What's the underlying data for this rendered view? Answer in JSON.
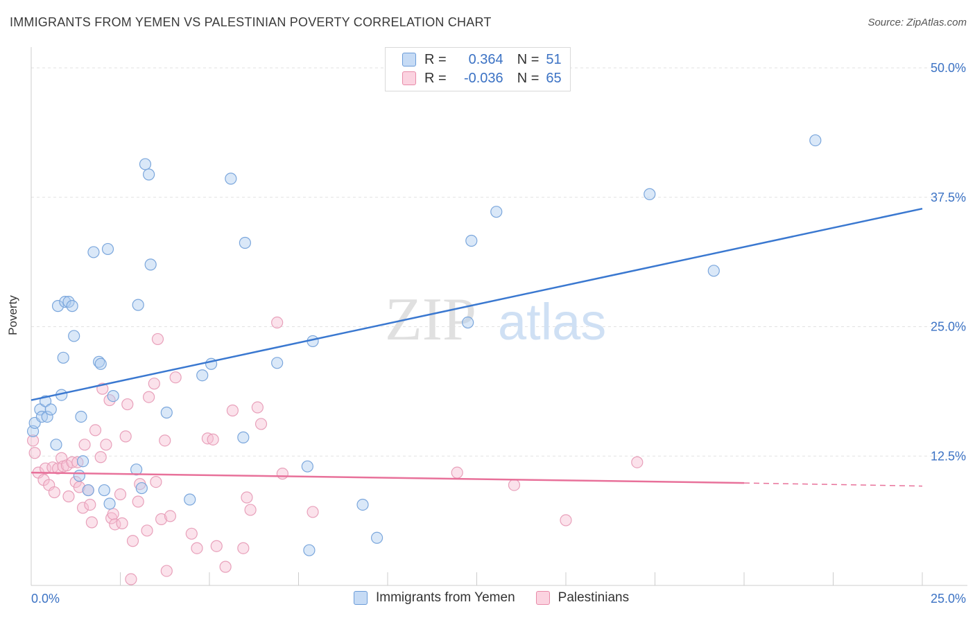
{
  "header": {
    "title": "IMMIGRANTS FROM YEMEN VS PALESTINIAN POVERTY CORRELATION CHART",
    "source": "Source: ZipAtlas.com"
  },
  "watermark": {
    "zip": "ZIP",
    "atlas": "atlas"
  },
  "legend": {
    "rows": [
      {
        "r_label": "R =",
        "r_value": "0.364",
        "n_label": "N =",
        "n_value": "51",
        "color": "#aecbf0",
        "border": "#6a9bd8"
      },
      {
        "r_label": "R =",
        "r_value": "-0.036",
        "n_label": "N =",
        "n_value": "65",
        "color": "#f7c4d4",
        "border": "#e88aa8"
      }
    ]
  },
  "bottom_legend": {
    "series1": "Immigrants from Yemen",
    "series2": "Palestinians"
  },
  "chart_data": {
    "type": "scatter",
    "xlabel": "",
    "ylabel": "Poverty",
    "xlim": [
      0,
      25
    ],
    "ylim": [
      0,
      50
    ],
    "x_tick_labels": [
      "0.0%",
      "25.0%"
    ],
    "y_tick_labels": [
      "12.5%",
      "25.0%",
      "37.5%",
      "50.0%"
    ],
    "y_tick_values": [
      12.5,
      25.0,
      37.5,
      50.0
    ],
    "colors": {
      "blue": "#3a78d0",
      "pink": "#e8719a"
    },
    "series": [
      {
        "name": "Immigrants from Yemen",
        "color": "#3a78d0",
        "trend": {
          "x": [
            0,
            25
          ],
          "y": [
            17.9,
            36.4
          ],
          "dashed_from": null
        },
        "points": [
          [
            0.05,
            14.9
          ],
          [
            0.1,
            15.7
          ],
          [
            0.25,
            17.0
          ],
          [
            0.3,
            16.3
          ],
          [
            0.4,
            17.8
          ],
          [
            0.45,
            16.3
          ],
          [
            0.55,
            17.0
          ],
          [
            0.7,
            13.6
          ],
          [
            0.75,
            27.0
          ],
          [
            0.85,
            18.4
          ],
          [
            0.9,
            22.0
          ],
          [
            0.95,
            27.4
          ],
          [
            1.05,
            27.4
          ],
          [
            1.15,
            27.0
          ],
          [
            1.2,
            24.1
          ],
          [
            1.35,
            10.6
          ],
          [
            1.4,
            16.3
          ],
          [
            1.45,
            12.0
          ],
          [
            1.6,
            9.2
          ],
          [
            1.75,
            32.2
          ],
          [
            1.9,
            21.6
          ],
          [
            1.95,
            21.4
          ],
          [
            2.05,
            9.2
          ],
          [
            2.15,
            32.5
          ],
          [
            2.2,
            7.9
          ],
          [
            2.3,
            18.3
          ],
          [
            2.95,
            11.2
          ],
          [
            3.0,
            27.1
          ],
          [
            3.1,
            9.4
          ],
          [
            3.2,
            40.7
          ],
          [
            3.3,
            39.7
          ],
          [
            3.35,
            31.0
          ],
          [
            3.8,
            16.7
          ],
          [
            4.45,
            8.3
          ],
          [
            4.8,
            20.3
          ],
          [
            5.05,
            21.4
          ],
          [
            5.6,
            39.3
          ],
          [
            5.95,
            14.3
          ],
          [
            6.0,
            33.1
          ],
          [
            6.9,
            21.5
          ],
          [
            7.75,
            11.5
          ],
          [
            7.8,
            3.4
          ],
          [
            7.9,
            23.6
          ],
          [
            9.3,
            7.8
          ],
          [
            9.7,
            4.6
          ],
          [
            12.25,
            25.4
          ],
          [
            12.35,
            33.3
          ],
          [
            13.05,
            36.1
          ],
          [
            17.35,
            37.8
          ],
          [
            19.15,
            30.4
          ],
          [
            22.0,
            43.0
          ]
        ]
      },
      {
        "name": "Palestinians",
        "color": "#e8719a",
        "trend": {
          "x": [
            0,
            20,
            25
          ],
          "y": [
            10.9,
            9.9,
            9.6
          ],
          "dashed_from": 20
        },
        "points": [
          [
            0.05,
            14.0
          ],
          [
            0.1,
            12.8
          ],
          [
            0.2,
            10.9
          ],
          [
            0.35,
            10.2
          ],
          [
            0.4,
            11.3
          ],
          [
            0.5,
            9.7
          ],
          [
            0.6,
            11.4
          ],
          [
            0.65,
            9.0
          ],
          [
            0.75,
            11.3
          ],
          [
            0.85,
            12.3
          ],
          [
            0.9,
            11.5
          ],
          [
            1.0,
            11.6
          ],
          [
            1.05,
            8.6
          ],
          [
            1.15,
            11.9
          ],
          [
            1.25,
            10.0
          ],
          [
            1.3,
            11.9
          ],
          [
            1.35,
            9.5
          ],
          [
            1.45,
            7.5
          ],
          [
            1.5,
            13.6
          ],
          [
            1.6,
            9.2
          ],
          [
            1.65,
            7.8
          ],
          [
            1.7,
            6.1
          ],
          [
            1.8,
            15.0
          ],
          [
            1.95,
            12.4
          ],
          [
            2.0,
            19.0
          ],
          [
            2.1,
            13.6
          ],
          [
            2.2,
            17.9
          ],
          [
            2.25,
            6.5
          ],
          [
            2.3,
            6.9
          ],
          [
            2.35,
            5.9
          ],
          [
            2.5,
            8.8
          ],
          [
            2.55,
            6.0
          ],
          [
            2.65,
            14.4
          ],
          [
            2.7,
            17.5
          ],
          [
            2.8,
            0.6
          ],
          [
            2.85,
            4.3
          ],
          [
            3.0,
            8.1
          ],
          [
            3.05,
            9.8
          ],
          [
            3.25,
            5.3
          ],
          [
            3.3,
            18.2
          ],
          [
            3.45,
            19.5
          ],
          [
            3.5,
            10.0
          ],
          [
            3.55,
            23.8
          ],
          [
            3.65,
            6.4
          ],
          [
            3.75,
            14.0
          ],
          [
            3.8,
            1.4
          ],
          [
            3.9,
            6.7
          ],
          [
            4.05,
            20.1
          ],
          [
            4.5,
            5.0
          ],
          [
            4.65,
            3.6
          ],
          [
            4.95,
            14.2
          ],
          [
            5.1,
            14.1
          ],
          [
            5.2,
            3.8
          ],
          [
            5.45,
            1.8
          ],
          [
            5.65,
            16.9
          ],
          [
            5.95,
            3.6
          ],
          [
            6.05,
            8.5
          ],
          [
            6.15,
            7.3
          ],
          [
            6.35,
            17.2
          ],
          [
            6.45,
            15.6
          ],
          [
            6.9,
            25.4
          ],
          [
            7.05,
            10.8
          ],
          [
            7.9,
            7.1
          ],
          [
            11.95,
            10.9
          ],
          [
            13.55,
            9.7
          ],
          [
            15.0,
            6.3
          ],
          [
            17.0,
            11.9
          ]
        ]
      }
    ]
  }
}
